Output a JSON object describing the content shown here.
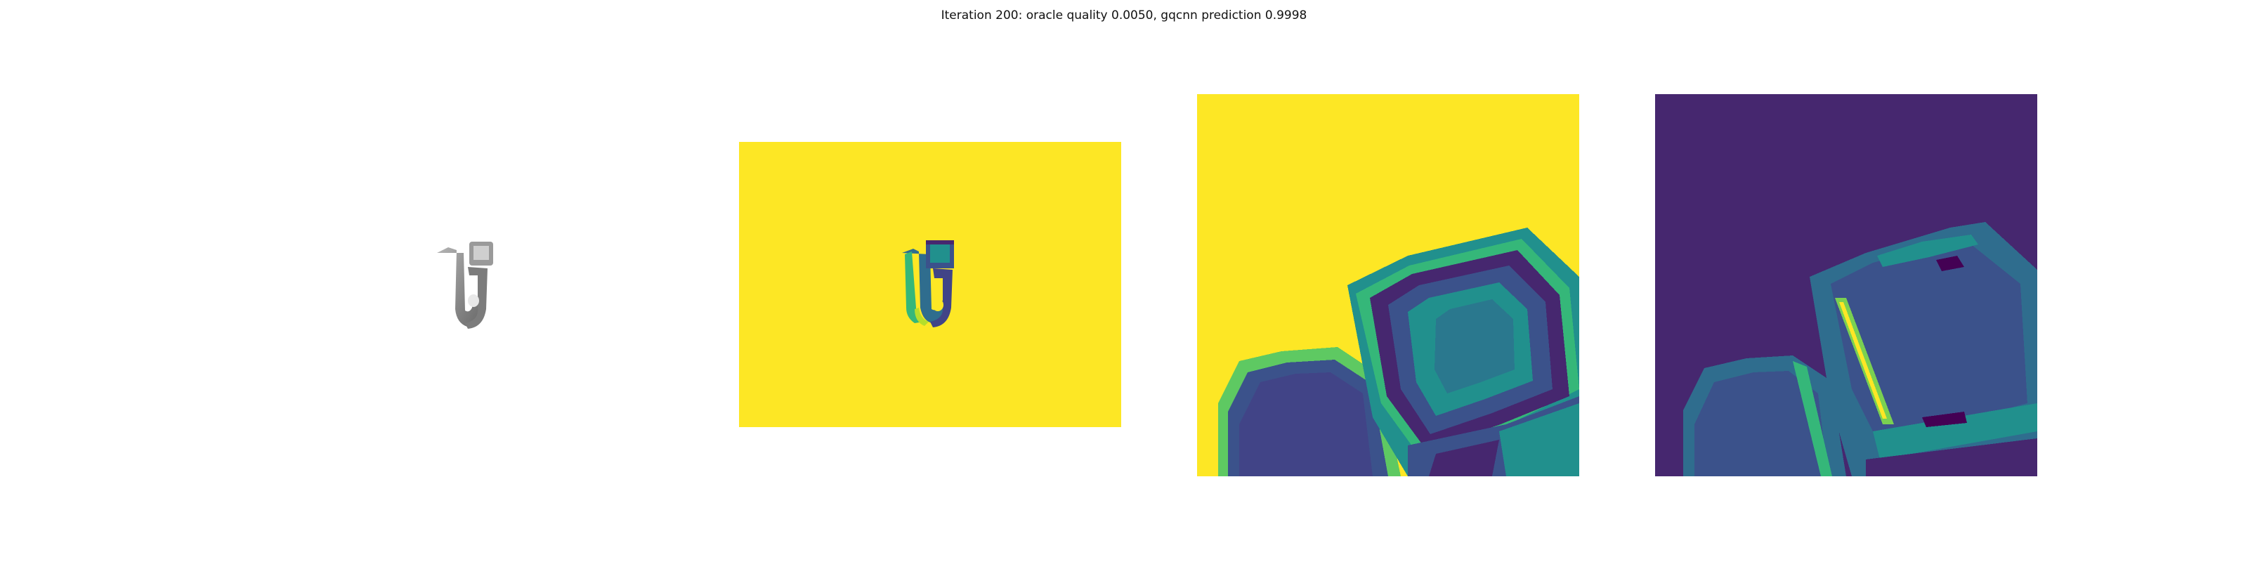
{
  "figure": {
    "title": "Iteration 200: oracle quality 0.0050, gqcnn prediction 0.9998"
  },
  "colors": {
    "viridis_yellow": "#fde725",
    "viridis_dark": "#440154",
    "viridis_purple": "#46276f",
    "viridis_teal": "#21908d",
    "viridis_blue": "#3b528b",
    "viridis_green": "#5ec962",
    "gray_object": "#8c8c8c"
  },
  "panels": [
    {
      "name": "rgb-render",
      "kind": "grayscale-object-render"
    },
    {
      "name": "depth-image",
      "kind": "depth-map"
    },
    {
      "name": "depth-crop",
      "kind": "depth-map-crop"
    },
    {
      "name": "gradient-crop",
      "kind": "gradient-map-crop"
    }
  ]
}
